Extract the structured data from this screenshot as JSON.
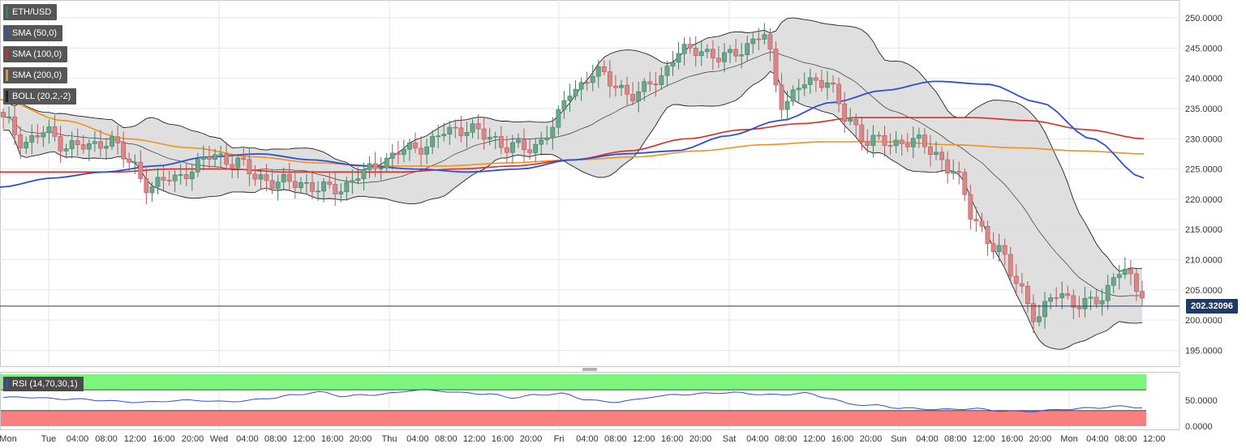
{
  "legend": {
    "symbol": {
      "label": "ETH/USD",
      "color": "#2e8b57"
    },
    "sma50": {
      "label": "SMA (50,0)",
      "color": "#2b4fd8"
    },
    "sma100": {
      "label": "SMA (100,0)",
      "color": "#e0291f"
    },
    "sma200": {
      "label": "SMA (200,0)",
      "color": "#f0901e"
    },
    "boll": {
      "label": "BOLL (20,2,-2)",
      "color": "#222222"
    }
  },
  "last_price": "202.32096",
  "rsi": {
    "label": "RSI (14,70,30,1)",
    "color": "#2b4fd8",
    "upper": 70,
    "lower": 30,
    "y_ticks": [
      "50.0000",
      "0.0000"
    ]
  },
  "colors": {
    "up": "#6aa68c",
    "down": "#d88888",
    "overbought": "#7cf57c",
    "oversold": "#fa7f7f"
  },
  "chart_data": {
    "type": "candlestick",
    "ylim": [
      192,
      252
    ],
    "y_ticks": [
      "195.0000",
      "200.0000",
      "205.0000",
      "210.0000",
      "215.0000",
      "220.0000",
      "225.0000",
      "230.0000",
      "235.0000",
      "240.0000",
      "245.0000",
      "250.0000"
    ],
    "x_ticks": [
      "Mon",
      "Tue",
      "04:00",
      "08:00",
      "12:00",
      "16:00",
      "20:00",
      "Wed",
      "04:00",
      "08:00",
      "12:00",
      "16:00",
      "20:00",
      "Thu",
      "04:00",
      "08:00",
      "12:00",
      "16:00",
      "20:00",
      "Fri",
      "04:00",
      "08:00",
      "12:00",
      "16:00",
      "20:00",
      "Sat",
      "04:00",
      "08:00",
      "12:00",
      "16:00",
      "20:00",
      "Sun",
      "04:00",
      "08:00",
      "12:00",
      "16:00",
      "20:00",
      "Mon",
      "04:00",
      "08:00",
      "12:00"
    ],
    "close_anchors": [
      233,
      229.5,
      231,
      229,
      228.5,
      230,
      226,
      222,
      223.5,
      225,
      227.5,
      226,
      224,
      222.5,
      223,
      221.5,
      222,
      224,
      226.5,
      228,
      229,
      231,
      232,
      230,
      229,
      228,
      232,
      238,
      241,
      239,
      237,
      240,
      244,
      245,
      243,
      245,
      247,
      236,
      239,
      240,
      233,
      230,
      229,
      230,
      228,
      225,
      217,
      212,
      207,
      200,
      205,
      202,
      204,
      208,
      205
    ],
    "sma50_anchors": [
      222,
      223.5,
      224.5,
      225.5,
      227,
      227.5,
      226.5,
      225.5,
      225,
      224.5,
      225,
      226.5,
      227.5,
      228,
      230.5,
      233,
      236,
      238,
      239.5,
      239,
      236,
      230,
      223.5
    ],
    "sma100_anchors": [
      224.5,
      224.5,
      224.5,
      225,
      225,
      224.5,
      224.5,
      224.5,
      225,
      225.5,
      226.5,
      228,
      230,
      231.5,
      232.5,
      233.5,
      233.5,
      233.5,
      233,
      231.5,
      230
    ],
    "sma200_anchors": [
      236.5,
      233,
      230,
      228.5,
      227,
      226,
      225.5,
      225.5,
      226,
      226.5,
      227,
      228,
      229,
      229.5,
      229.5,
      229,
      228.5,
      228,
      227.5
    ],
    "rsi_anchors": [
      55,
      56,
      53,
      52,
      50,
      47,
      46,
      49,
      50,
      47,
      49,
      54,
      60,
      66,
      58,
      60,
      63,
      70,
      68,
      64,
      62,
      55,
      60,
      63,
      52,
      46,
      50,
      58,
      61,
      63,
      65,
      62,
      60,
      64,
      55,
      42,
      40,
      35,
      33,
      32,
      34,
      30,
      28,
      30,
      33,
      35,
      38,
      36
    ]
  }
}
